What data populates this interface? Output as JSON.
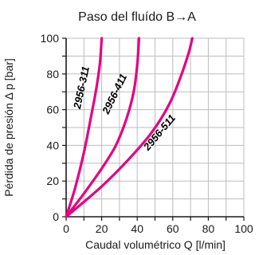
{
  "chart_data": {
    "type": "line",
    "title": "Paso del fluído B→A",
    "xlabel": "Caudal volumétrico Q [l/min]",
    "ylabel": "Pérdida de presión Δ p [bar]",
    "xlim": [
      0,
      100
    ],
    "ylim": [
      0,
      100
    ],
    "xticks": [
      0,
      10,
      20,
      30,
      40,
      50,
      60,
      70,
      80,
      90,
      100
    ],
    "xtick_labels": [
      "0",
      "",
      "20",
      "",
      "40",
      "",
      "60",
      "",
      "80",
      "",
      "100"
    ],
    "yticks": [
      0,
      10,
      20,
      30,
      40,
      50,
      60,
      70,
      80,
      90,
      100
    ],
    "ytick_labels": [
      "0",
      "",
      "20",
      "",
      "40",
      "",
      "60",
      "",
      "80",
      "",
      "100"
    ],
    "grid": true,
    "colors": {
      "series": "#e6007e",
      "grid": "#bdbdbd",
      "axis": "#1a1a1a",
      "label": "#000000"
    },
    "series": [
      {
        "name": "2956-311",
        "points": [
          [
            0,
            0
          ],
          [
            5,
            16
          ],
          [
            10,
            36
          ],
          [
            14,
            56
          ],
          [
            17,
            72
          ],
          [
            19,
            86
          ],
          [
            20,
            100
          ]
        ]
      },
      {
        "name": "2956-411",
        "points": [
          [
            0,
            0
          ],
          [
            10,
            13
          ],
          [
            20,
            27
          ],
          [
            28,
            40
          ],
          [
            34,
            55
          ],
          [
            38,
            70
          ],
          [
            40,
            85
          ],
          [
            41,
            100
          ]
        ]
      },
      {
        "name": "2956-511",
        "points": [
          [
            0,
            0
          ],
          [
            20,
            17
          ],
          [
            35,
            32
          ],
          [
            48,
            47
          ],
          [
            58,
            63
          ],
          [
            65,
            80
          ],
          [
            69,
            92
          ],
          [
            71,
            100
          ]
        ]
      }
    ],
    "annotations": [
      {
        "text": "2956-311",
        "x": 10.5,
        "y": 72,
        "rotation": -78,
        "series": 0
      },
      {
        "text": "2956-411",
        "x": 29,
        "y": 68,
        "rotation": -64,
        "series": 1
      },
      {
        "text": "2956-511",
        "x": 54,
        "y": 46,
        "rotation": -50,
        "series": 2
      }
    ]
  }
}
